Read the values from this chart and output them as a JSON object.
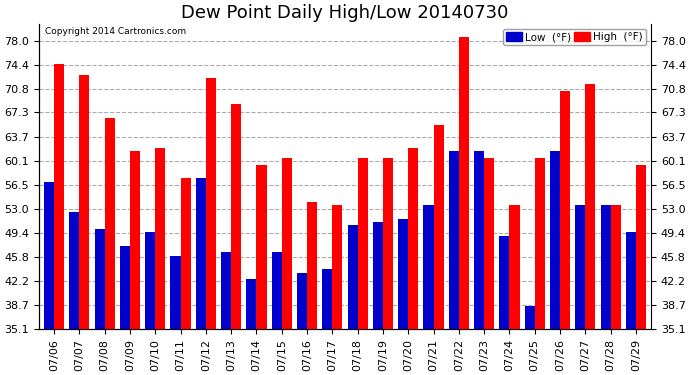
{
  "title": "Dew Point Daily High/Low 20140730",
  "copyright": "Copyright 2014 Cartronics.com",
  "dates": [
    "07/06",
    "07/07",
    "07/08",
    "07/09",
    "07/10",
    "07/11",
    "07/12",
    "07/13",
    "07/14",
    "07/15",
    "07/16",
    "07/17",
    "07/18",
    "07/19",
    "07/20",
    "07/21",
    "07/22",
    "07/23",
    "07/24",
    "07/25",
    "07/26",
    "07/27",
    "07/28",
    "07/29"
  ],
  "high": [
    74.5,
    72.8,
    66.5,
    61.5,
    62.0,
    57.5,
    72.5,
    68.5,
    59.5,
    60.5,
    54.0,
    53.5,
    60.5,
    60.5,
    62.0,
    65.5,
    78.5,
    60.5,
    53.5,
    60.5,
    70.5,
    71.5,
    53.5,
    59.5
  ],
  "low": [
    57.0,
    52.5,
    50.0,
    47.5,
    49.5,
    46.0,
    57.5,
    46.5,
    42.5,
    46.5,
    43.5,
    44.0,
    50.5,
    51.0,
    51.5,
    53.5,
    61.5,
    61.5,
    49.0,
    38.5,
    61.5,
    53.5,
    53.5,
    49.5
  ],
  "high_color": "#ff0000",
  "low_color": "#0000cc",
  "ylim_min": 35.1,
  "ylim_max": 80.5,
  "yticks": [
    35.1,
    38.7,
    42.2,
    45.8,
    49.4,
    53.0,
    56.5,
    60.1,
    63.7,
    67.3,
    70.8,
    74.4,
    78.0
  ],
  "background_color": "#ffffff",
  "grid_color": "#aaaaaa",
  "title_fontsize": 13,
  "tick_fontsize": 8,
  "bar_width": 0.4,
  "legend_low_label": "Low  (°F)",
  "legend_high_label": "High  (°F)"
}
